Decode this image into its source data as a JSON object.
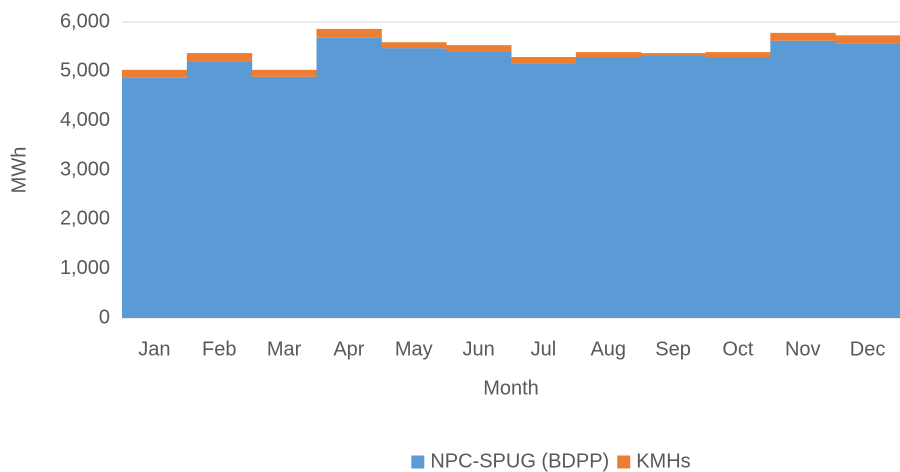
{
  "chart_data": {
    "type": "stacked_bar",
    "xlabel": "Month",
    "ylabel": "MWh",
    "categories": [
      "Jan",
      "Feb",
      "Mar",
      "Apr",
      "May",
      "Jun",
      "Jul",
      "Aug",
      "Sep",
      "Oct",
      "Nov",
      "Dec"
    ],
    "series": [
      {
        "name": "NPC-SPUG (BDPP)",
        "color": "#5b9bd5",
        "values": [
          4870,
          5190,
          4890,
          5680,
          5470,
          5410,
          5150,
          5290,
          5330,
          5290,
          5620,
          5570
        ]
      },
      {
        "name": "KMHs",
        "color": "#ed7d31",
        "values": [
          160,
          180,
          140,
          180,
          120,
          120,
          140,
          100,
          40,
          100,
          160,
          160
        ]
      }
    ],
    "ylim": [
      0,
      6000
    ],
    "yticks": [
      0,
      {
        "value": 1000,
        "label": "1,000"
      },
      {
        "value": 2000,
        "label": "2,000"
      },
      {
        "value": 3000,
        "label": "3,000"
      },
      {
        "value": 4000,
        "label": "4,000"
      },
      {
        "value": 5000,
        "label": "5,000"
      },
      {
        "value": 6000,
        "label": "6,000"
      }
    ],
    "grid": true,
    "legend": "bottom"
  }
}
